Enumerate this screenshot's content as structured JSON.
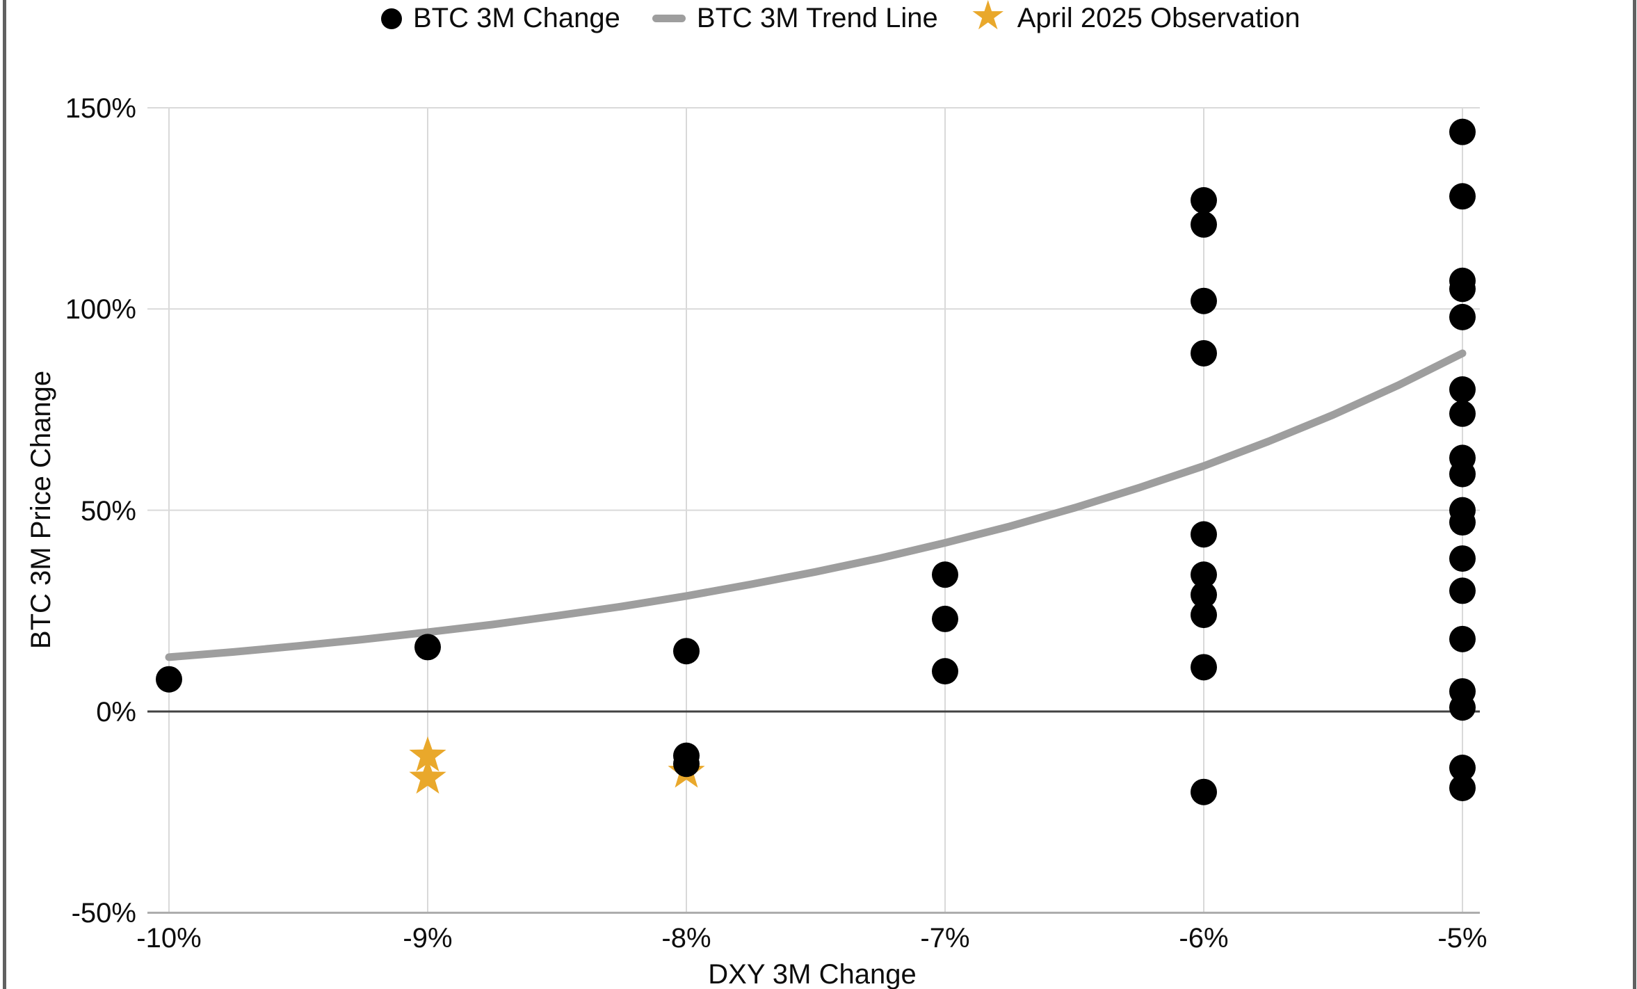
{
  "axes": {
    "x_title": "DXY 3M Change",
    "y_title": "BTC 3M Price Change",
    "x_ticks": [
      "-10%",
      "-9%",
      "-8%",
      "-7%",
      "-6%",
      "-5%"
    ],
    "y_ticks": [
      "150%",
      "100%",
      "50%",
      "0%",
      "-50%"
    ]
  },
  "chart_data": {
    "type": "scatter",
    "title": "",
    "xlabel": "DXY 3M Change",
    "ylabel": "BTC 3M Price Change",
    "x_tick_values": [
      -10,
      -9,
      -8,
      -7,
      -6,
      -5
    ],
    "y_tick_values": [
      150,
      100,
      50,
      0,
      -50
    ],
    "xlim": [
      -10.1,
      -4.93
    ],
    "ylim": [
      -53,
      152
    ],
    "grid": true,
    "legend_position": "top",
    "series": [
      {
        "name": "BTC 3M Change",
        "type": "scatter",
        "color": "#000000",
        "points": [
          [
            -10,
            8
          ],
          [
            -9,
            16
          ],
          [
            -8,
            15
          ],
          [
            -8,
            -11
          ],
          [
            -8,
            -13
          ],
          [
            -7,
            34
          ],
          [
            -7,
            23
          ],
          [
            -7,
            10
          ],
          [
            -6,
            127
          ],
          [
            -6,
            121
          ],
          [
            -6,
            102
          ],
          [
            -6,
            89
          ],
          [
            -6,
            44
          ],
          [
            -6,
            34
          ],
          [
            -6,
            29
          ],
          [
            -6,
            24
          ],
          [
            -6,
            11
          ],
          [
            -6,
            -20
          ],
          [
            -5,
            144
          ],
          [
            -5,
            128
          ],
          [
            -5,
            107
          ],
          [
            -5,
            105
          ],
          [
            -5,
            98
          ],
          [
            -5,
            80
          ],
          [
            -5,
            74
          ],
          [
            -5,
            63
          ],
          [
            -5,
            59
          ],
          [
            -5,
            50
          ],
          [
            -5,
            47
          ],
          [
            -5,
            38
          ],
          [
            -5,
            30
          ],
          [
            -5,
            18
          ],
          [
            -5,
            5
          ],
          [
            -5,
            1
          ],
          [
            -5,
            -14
          ],
          [
            -5,
            -19
          ]
        ]
      },
      {
        "name": "BTC 3M Trend Line",
        "type": "line",
        "color": "#9e9e9e",
        "points": [
          [
            -10,
            13.5
          ],
          [
            -9.75,
            14.8
          ],
          [
            -9.5,
            16.3
          ],
          [
            -9.25,
            17.9
          ],
          [
            -9,
            19.7
          ],
          [
            -8.75,
            21.6
          ],
          [
            -8.5,
            23.8
          ],
          [
            -8.25,
            26.1
          ],
          [
            -8,
            28.7
          ],
          [
            -7.75,
            31.6
          ],
          [
            -7.5,
            34.7
          ],
          [
            -7.25,
            38.1
          ],
          [
            -7,
            41.9
          ],
          [
            -6.75,
            46.0
          ],
          [
            -6.5,
            50.6
          ],
          [
            -6.25,
            55.6
          ],
          [
            -6,
            61.0
          ],
          [
            -5.75,
            67.1
          ],
          [
            -5.5,
            73.7
          ],
          [
            -5.25,
            81.0
          ],
          [
            -5,
            89.0
          ]
        ]
      },
      {
        "name": "April 2025 Observation",
        "type": "star",
        "color": "#e9a82b",
        "points": [
          [
            -9,
            -11
          ],
          [
            -9,
            -16.5
          ],
          [
            -8,
            -15
          ]
        ]
      }
    ]
  }
}
